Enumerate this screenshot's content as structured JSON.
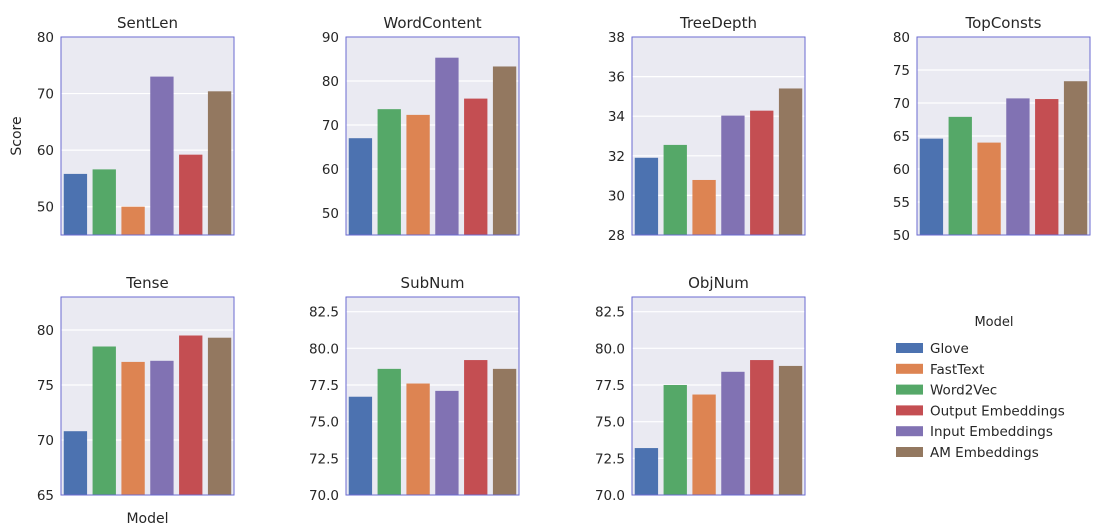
{
  "chart_data": {
    "type": "bar",
    "panels": [
      {
        "title": "SentLen",
        "ylabel": "Score",
        "xlabel": "",
        "ylim": [
          45,
          80
        ],
        "yticks": [
          50,
          60,
          70,
          80
        ],
        "ytick_labels": [
          "50",
          "60",
          "70",
          "80"
        ],
        "categories": [
          "Glove",
          "Word2Vec",
          "FastText",
          "Input Embeddings",
          "Output Embeddings",
          "AM Embeddings"
        ],
        "values": [
          55.8,
          56.6,
          50.0,
          73.0,
          59.2,
          70.4
        ]
      },
      {
        "title": "WordContent",
        "ylabel": "",
        "xlabel": "",
        "ylim": [
          45,
          90
        ],
        "yticks": [
          50,
          60,
          70,
          80,
          90
        ],
        "ytick_labels": [
          "50",
          "60",
          "70",
          "80",
          "90"
        ],
        "categories": [
          "Glove",
          "Word2Vec",
          "FastText",
          "Input Embeddings",
          "Output Embeddings",
          "AM Embeddings"
        ],
        "values": [
          67.0,
          73.6,
          72.3,
          85.3,
          76.0,
          83.3
        ]
      },
      {
        "title": "TreeDepth",
        "ylabel": "",
        "xlabel": "",
        "ylim": [
          28,
          38
        ],
        "yticks": [
          28,
          30,
          32,
          34,
          36,
          38
        ],
        "ytick_labels": [
          "28",
          "30",
          "32",
          "34",
          "36",
          "38"
        ],
        "categories": [
          "Glove",
          "Word2Vec",
          "FastText",
          "Input Embeddings",
          "Output Embeddings",
          "AM Embeddings"
        ],
        "values": [
          31.9,
          32.55,
          30.78,
          34.03,
          34.28,
          35.4
        ]
      },
      {
        "title": "TopConsts",
        "ylabel": "",
        "xlabel": "",
        "ylim": [
          50,
          80
        ],
        "yticks": [
          50,
          55,
          60,
          65,
          70,
          75,
          80
        ],
        "ytick_labels": [
          "50",
          "55",
          "60",
          "65",
          "70",
          "75",
          "80"
        ],
        "categories": [
          "Glove",
          "Word2Vec",
          "FastText",
          "Input Embeddings",
          "Output Embeddings",
          "AM Embeddings"
        ],
        "values": [
          64.6,
          67.9,
          64.0,
          70.7,
          70.6,
          73.3
        ]
      },
      {
        "title": "Tense",
        "ylabel": "",
        "xlabel": "Model",
        "ylim": [
          65,
          83
        ],
        "yticks": [
          65,
          70,
          75,
          80
        ],
        "ytick_labels": [
          "65",
          "70",
          "75",
          "80"
        ],
        "categories": [
          "Glove",
          "Word2Vec",
          "FastText",
          "Input Embeddings",
          "Output Embeddings",
          "AM Embeddings"
        ],
        "values": [
          70.8,
          78.5,
          77.1,
          77.2,
          79.5,
          79.3
        ]
      },
      {
        "title": "SubNum",
        "ylabel": "",
        "xlabel": "",
        "ylim": [
          70,
          83.5
        ],
        "yticks": [
          70,
          72.5,
          75,
          77.5,
          80,
          82.5
        ],
        "ytick_labels": [
          "70.0",
          "72.5",
          "75.0",
          "77.5",
          "80.0",
          "82.5"
        ],
        "categories": [
          "Glove",
          "Word2Vec",
          "FastText",
          "Input Embeddings",
          "Output Embeddings",
          "AM Embeddings"
        ],
        "values": [
          76.7,
          78.6,
          77.6,
          77.1,
          79.2,
          78.6
        ]
      },
      {
        "title": "ObjNum",
        "ylabel": "",
        "xlabel": "",
        "ylim": [
          70,
          83.5
        ],
        "yticks": [
          70,
          72.5,
          75,
          77.5,
          80,
          82.5
        ],
        "ytick_labels": [
          "70.0",
          "72.5",
          "75.0",
          "77.5",
          "80.0",
          "82.5"
        ],
        "categories": [
          "Glove",
          "Word2Vec",
          "FastText",
          "Input Embeddings",
          "Output Embeddings",
          "AM Embeddings"
        ],
        "values": [
          73.2,
          77.5,
          76.85,
          78.4,
          79.2,
          78.8
        ]
      }
    ],
    "legend": {
      "title": "Model",
      "placement": "right",
      "entries": [
        {
          "name": "Glove",
          "color": "#4c72b0"
        },
        {
          "name": "FastText",
          "color": "#dd8452"
        },
        {
          "name": "Word2Vec",
          "color": "#55a868"
        },
        {
          "name": "Output Embeddings",
          "color": "#c44e52"
        },
        {
          "name": "Input Embeddings",
          "color": "#8172b3"
        },
        {
          "name": "AM Embeddings",
          "color": "#937860"
        }
      ]
    },
    "category_colors": {
      "Glove": "#4c72b0",
      "Word2Vec": "#55a868",
      "FastText": "#dd8452",
      "Input Embeddings": "#8172b3",
      "Output Embeddings": "#c44e52",
      "AM Embeddings": "#937860"
    },
    "plot_background": "#eaeaf2",
    "frame_color": "#6a6ad0",
    "grid": true
  }
}
